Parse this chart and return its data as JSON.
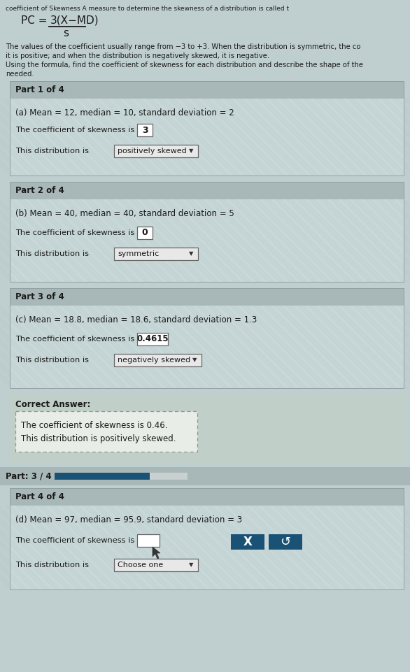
{
  "bg_color": "#bfcfcf",
  "header_text": "coefficient of Skewness A measure to determine the skewness of a distribution is called t",
  "formula_pc": "PC =",
  "formula_num": "3(Χ−MD)",
  "formula_den": "s",
  "desc_line1": "The values of the coefficient usually range from −3 to +3. When the distribution is symmetric, the co",
  "desc_line2": "it is positive; and when the distribution is negatively skewed, it is negative.",
  "desc_line3": "Using the formula, find the coefficient of skewness for each distribution and describe the shape of the",
  "desc_line4": "needed.",
  "part1_header": "Part 1 of 4",
  "part1_data": "(a) Mean = 12, median = 10, standard deviation = 2",
  "part1_coeff_label": "The coefficient of skewness is",
  "part1_coeff_val": "3",
  "part1_dist_label": "This distribution is",
  "part1_dist_val": "positively skewed",
  "part2_header": "Part 2 of 4",
  "part2_data": "(b) Mean = 40, median = 40, standard deviation = 5",
  "part2_coeff_label": "The coefficient of skewness is",
  "part2_coeff_val": "0",
  "part2_dist_label": "This distribution is",
  "part2_dist_val": "symmetric",
  "part3_header": "Part 3 of 4",
  "part3_data": "(c) Mean = 18.8, median = 18.6, standard deviation = 1.3",
  "part3_coeff_label": "The coefficient of skewness is",
  "part3_coeff_val": "0.4615",
  "part3_dist_label": "This distribution is",
  "part3_dist_val": "negatively skewed",
  "correct_answer_header": "Correct Answer:",
  "correct_answer_line1": "The coefficient of skewness is 0.46.",
  "correct_answer_line2": "This distribution is positively skewed.",
  "progress_label": "Part: 3 / 4",
  "part4_header": "Part 4 of 4",
  "part4_data": "(d) Mean = 97, median = 95.9, standard deviation = 3",
  "part4_coeff_label": "The coefficient of skewness is",
  "part4_dist_label": "This distribution is",
  "part4_dist_val": "Choose one",
  "section_header_bg": "#a8b8b8",
  "part_body_bg": "#c8d8d8",
  "outer_bg": "#bfcfcf",
  "correct_answer_outer": "#c0d0c8",
  "correct_answer_inner": "#e8ede8",
  "progress_bg_color": "#a8b8b8",
  "progress_bar_fill": "#1a5276",
  "progress_bar_track": "#c8d0d0",
  "button_bg": "#1a5276",
  "dark_text": "#1a1a1a",
  "input_border": "#666666",
  "dropdown_bg": "#e8e8e8"
}
